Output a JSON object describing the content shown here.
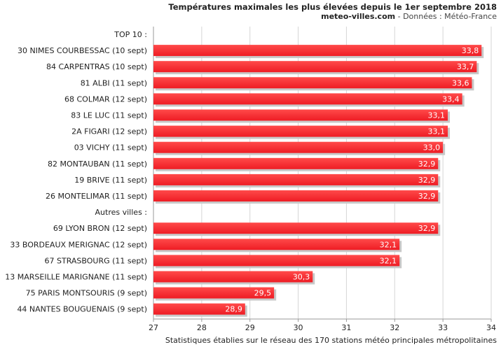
{
  "chart_data": {
    "type": "bar",
    "orientation": "horizontal",
    "title": "Températures maximales les plus élevées depuis le 1er septembre 2018",
    "subtitle_site": "meteo-villes.com",
    "subtitle_source": " - Données : Météo-France",
    "footer": "Statistiques établies sur le réseau des 170 stations météo principales métropolitaines",
    "categories": [
      "TOP 10 :",
      "30 NIMES COURBESSAC (10 sept)",
      "84 CARPENTRAS (10 sept)",
      "81 ALBI (11 sept)",
      "68 COLMAR (12 sept)",
      "83 LE LUC (11 sept)",
      "2A FIGARI (12 sept)",
      "03 VICHY (11 sept)",
      "82 MONTAUBAN (11 sept)",
      "19 BRIVE (11 sept)",
      "26 MONTELIMAR (11 sept)",
      "Autres villes :",
      "69 LYON BRON (12 sept)",
      "33 BORDEAUX MERIGNAC (12 sept)",
      "67 STRASBOURG (11 sept)",
      "13 MARSEILLE MARIGNANE (11 sept)",
      "75 PARIS MONTSOURIS (9 sept)",
      "44 NANTES BOUGUENAIS (9 sept)"
    ],
    "values": [
      null,
      33.8,
      33.7,
      33.6,
      33.4,
      33.1,
      33.1,
      33.0,
      32.9,
      32.9,
      32.9,
      null,
      32.9,
      32.1,
      32.1,
      30.3,
      29.5,
      28.9
    ],
    "value_labels": [
      "",
      "33,8",
      "33,7",
      "33,6",
      "33,4",
      "33,1",
      "33,1",
      "33,0",
      "32,9",
      "32,9",
      "32,9",
      "",
      "32,9",
      "32,1",
      "32,1",
      "30,3",
      "29,5",
      "28,9"
    ],
    "xlim": [
      27,
      34
    ],
    "xticks": [
      "27",
      "28",
      "29",
      "30",
      "31",
      "32",
      "33",
      "34"
    ],
    "grid": true,
    "bar_color": "#ee1c24",
    "bar_highlight": "#ff4a4a",
    "shadow_color": "#c8c8c8",
    "grid_color": "#d6d6d6"
  }
}
